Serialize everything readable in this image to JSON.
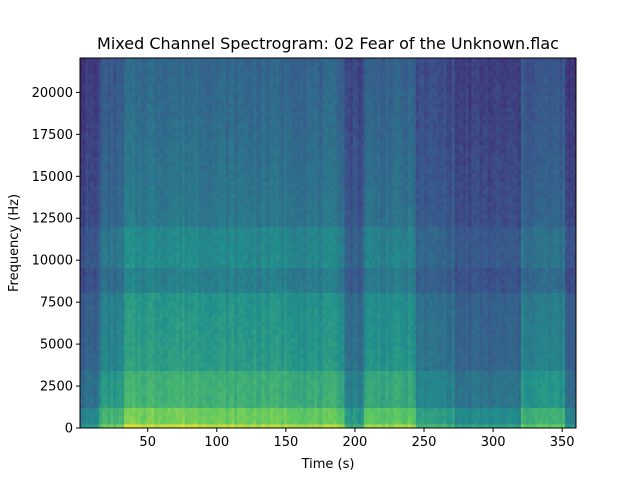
{
  "chart_data": {
    "type": "heatmap",
    "title": "Mixed Channel Spectrogram: 02 Fear of the Unknown.flac",
    "xlabel": "Time (s)",
    "ylabel": "Frequency (Hz)",
    "xlim": [
      1,
      360
    ],
    "ylim": [
      0,
      22050
    ],
    "x_ticks": [
      50,
      100,
      150,
      200,
      250,
      300,
      350
    ],
    "y_ticks": [
      0,
      2500,
      5000,
      7500,
      10000,
      12500,
      15000,
      17500,
      20000
    ],
    "colormap": [
      "#440154",
      "#3b528b",
      "#21918c",
      "#5ec962",
      "#fde725"
    ],
    "time_segments": [
      {
        "start": 1,
        "end": 15,
        "level": 0.18
      },
      {
        "start": 15,
        "end": 33,
        "level": 0.42
      },
      {
        "start": 33,
        "end": 97,
        "level": 0.6
      },
      {
        "start": 97,
        "end": 160,
        "level": 0.57
      },
      {
        "start": 160,
        "end": 192,
        "level": 0.54
      },
      {
        "start": 192,
        "end": 207,
        "level": 0.28
      },
      {
        "start": 207,
        "end": 245,
        "level": 0.52
      },
      {
        "start": 245,
        "end": 272,
        "level": 0.3
      },
      {
        "start": 272,
        "end": 320,
        "level": 0.2
      },
      {
        "start": 320,
        "end": 352,
        "level": 0.4
      },
      {
        "start": 352,
        "end": 360,
        "level": 0.15
      }
    ]
  }
}
